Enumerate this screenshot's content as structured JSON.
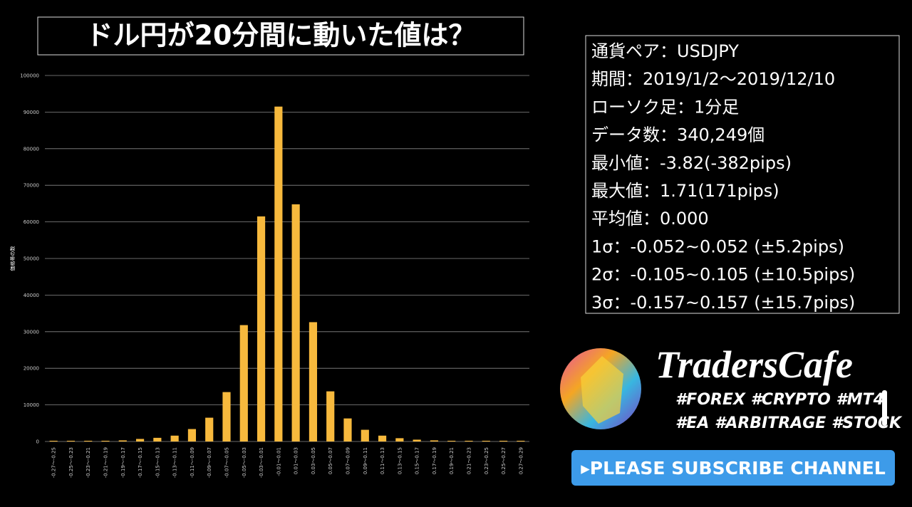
{
  "chart_data": {
    "type": "bar",
    "title": "ドル円が20分間に動いた値は？",
    "y_label": "価格帯の数",
    "categories": [
      "-0.27～-0.25",
      "-0.25～-0.23",
      "-0.23～-0.21",
      "-0.21～-0.19",
      "-0.19～-0.17",
      "-0.17～-0.15",
      "-0.15～-0.13",
      "-0.13～-0.11",
      "-0.11～-0.09",
      "-0.09～-0.07",
      "-0.07～-0.05",
      "-0.05～-0.03",
      "-0.03～-0.01",
      "-0.01～0.01",
      "0.01～0.03",
      "0.03～0.05",
      "0.05～0.07",
      "0.07～0.09",
      "0.09～0.11",
      "0.11～0.13",
      "0.13～0.15",
      "0.15～0.17",
      "0.17～0.19",
      "0.19～0.21",
      "0.21～0.23",
      "0.23～0.25",
      "0.25～0.27",
      "0.27～0.29"
    ],
    "values": [
      200,
      200,
      200,
      200,
      300,
      700,
      1000,
      1600,
      3400,
      6500,
      13500,
      31800,
      61500,
      91500,
      64800,
      32600,
      13700,
      6300,
      3200,
      1600,
      900,
      500,
      300,
      200,
      200,
      200,
      200,
      200
    ],
    "color": "#f7b93d",
    "ylim": [
      0,
      100000
    ],
    "yticks": [
      0,
      10000,
      20000,
      30000,
      40000,
      50000,
      60000,
      70000,
      80000,
      90000,
      100000
    ],
    "grid": true
  },
  "info": {
    "lines": [
      "通貨ペア：USDJPY",
      "期間：2019/1/2～2019/12/10",
      "ローソク足：1分足",
      "データ数：340,249個",
      "最小値：-3.82(-382pips)",
      "最大値：1.71(171pips)",
      "平均値：0.000",
      "1σ：-0.052~0.052 (±5.2pips)",
      "2σ：-0.105~0.105 (±10.5pips)",
      "3σ：-0.157~0.157 (±15.7pips)"
    ]
  },
  "brand": {
    "name": "TradersCafe",
    "tags": [
      "#FOREX #CRYPTO #MT4",
      "#EA #ARBITRAGE #STOCK"
    ],
    "button": "▸PLEASE SUBSCRIBE CHANNEL"
  }
}
